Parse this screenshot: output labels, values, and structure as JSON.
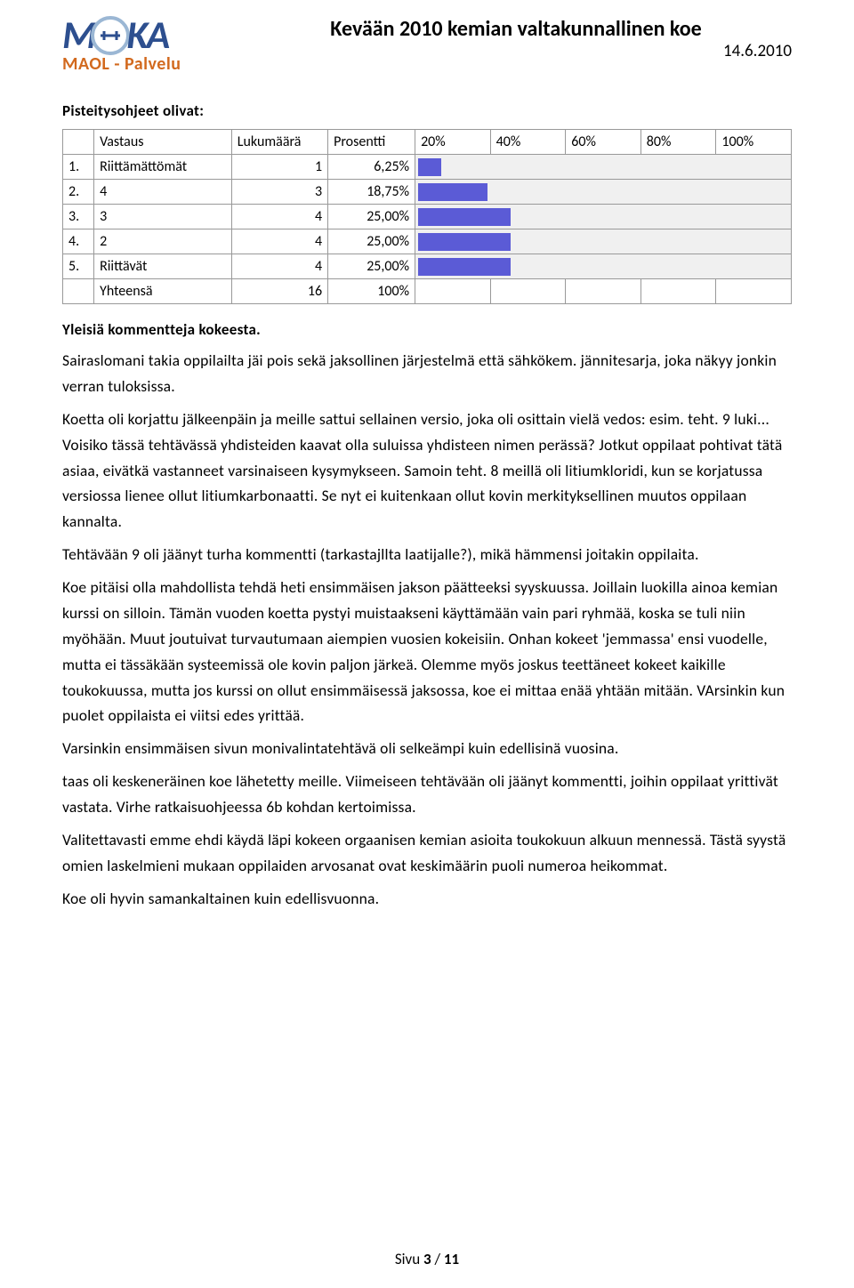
{
  "logo": {
    "top_left": "M",
    "top_right": "KA",
    "bottom": "MAOL - Palvelu"
  },
  "doc": {
    "title": "Kevään 2010 kemian valtakunnallinen koe",
    "date": "14.6.2010"
  },
  "section1": {
    "heading": "Pisteitysohjeet olivat:",
    "columns": {
      "c1": "",
      "c2": "Vastaus",
      "c3": "Lukumäärä",
      "c4": "Prosentti",
      "h20": "20%",
      "h40": "40%",
      "h60": "60%",
      "h80": "80%",
      "h100": "100%"
    },
    "rows": [
      {
        "n": "1.",
        "label": "Riittämättömät",
        "count": "1",
        "pct": "6,25%",
        "bar_pct": 6.25
      },
      {
        "n": "2.",
        "label": "4",
        "count": "3",
        "pct": "18,75%",
        "bar_pct": 18.75
      },
      {
        "n": "3.",
        "label": "3",
        "count": "4",
        "pct": "25,00%",
        "bar_pct": 25.0
      },
      {
        "n": "4.",
        "label": "2",
        "count": "4",
        "pct": "25,00%",
        "bar_pct": 25.0
      },
      {
        "n": "5.",
        "label": "Riittävät",
        "count": "4",
        "pct": "25,00%",
        "bar_pct": 25.0
      }
    ],
    "total": {
      "label": "Yhteensä",
      "count": "16",
      "pct": "100%"
    },
    "bar_color": "#5b5bd6",
    "bar_bg": "#f0f0f0"
  },
  "section2": {
    "heading": "Yleisiä kommentteja kokeesta.",
    "p1": "Sairaslomani takia oppilailta jäi pois sekä jaksollinen järjestelmä että sähkökem. jännitesarja, joka näkyy jonkin verran tuloksissa.",
    "p2": "Koetta oli korjattu jälkeenpäin ja meille sattui sellainen versio, joka oli osittain vielä vedos: esim. teht. 9 luki... Voisiko tässä tehtävässä yhdisteiden kaavat olla suluissa yhdisteen nimen perässä? Jotkut oppilaat pohtivat tätä asiaa, eivätkä vastanneet varsinaiseen kysymykseen. Samoin teht. 8 meillä oli litiumkloridi, kun se korjatussa versiossa lienee ollut litiumkarbonaatti. Se nyt ei kuitenkaan ollut kovin merkityksellinen muutos oppilaan kannalta.",
    "p3": "Tehtävään 9 oli jäänyt turha kommentti (tarkastajllta laatijalle?), mikä hämmensi joitakin oppilaita.",
    "p4": "Koe pitäisi olla mahdollista tehdä heti ensimmäisen jakson päätteeksi syyskuussa. Joillain luokilla ainoa kemian kurssi on silloin. Tämän vuoden koetta pystyi muistaakseni käyttämään vain pari ryhmää, koska se tuli niin myöhään. Muut joutuivat turvautumaan aiempien vuosien kokeisiin. Onhan kokeet 'jemmassa' ensi vuodelle, mutta ei tässäkään systeemissä ole kovin paljon järkeä.   Olemme myös joskus teettäneet kokeet kaikille toukokuussa, mutta jos kurssi on ollut ensimmäisessä jaksossa, koe ei mittaa enää yhtään mitään. VArsinkin kun puolet oppilaista ei viitsi edes yrittää.",
    "p5": "Varsinkin ensimmäisen sivun monivalintatehtävä oli selkeämpi kuin edellisinä vuosina.",
    "p6": "taas oli keskeneräinen koe lähetetty meille. Viimeiseen tehtävään oli jäänyt kommentti, joihin oppilaat yrittivät vastata.  Virhe ratkaisuohjeessa 6b kohdan kertoimissa.",
    "p7": "Valitettavasti emme ehdi käydä läpi kokeen orgaanisen kemian asioita toukokuun alkuun mennessä. Tästä syystä omien laskelmieni mukaan oppilaiden arvosanat ovat keskimäärin puoli numeroa heikommat.",
    "p8": "Koe oli hyvin samankaltainen kuin edellisvuonna."
  },
  "footer": {
    "label": "Sivu ",
    "page": "3",
    "sep": " / ",
    "total": "11"
  }
}
